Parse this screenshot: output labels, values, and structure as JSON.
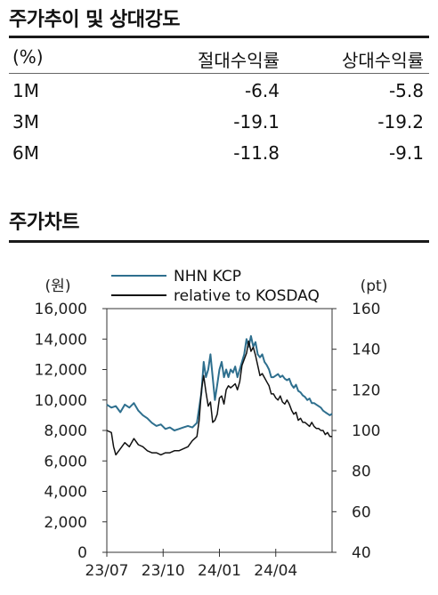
{
  "table_section": {
    "title": "주가추이 및 상대강도",
    "headers": [
      "(%)",
      "절대수익률",
      "상대수익률"
    ],
    "rows": [
      [
        "1M",
        "-6.4",
        "-5.8"
      ],
      [
        "3M",
        "-19.1",
        "-19.2"
      ],
      [
        "6M",
        "-11.8",
        "-9.1"
      ]
    ]
  },
  "chart_section": {
    "title": "주가차트"
  },
  "chart_data": {
    "type": "line",
    "left_axis": {
      "unit": "(원)",
      "range": [
        0,
        16000
      ],
      "ticks": [
        "0",
        "2,000",
        "4,000",
        "6,000",
        "8,000",
        "10,000",
        "12,000",
        "14,000",
        "16,000"
      ]
    },
    "right_axis": {
      "unit": "(pt)",
      "range": [
        40,
        160
      ],
      "ticks": [
        "40",
        "60",
        "80",
        "100",
        "120",
        "140",
        "160"
      ]
    },
    "x_ticks": [
      "23/07",
      "23/10",
      "24/01",
      "24/04"
    ],
    "x_range": [
      "2023-07",
      "2024-07"
    ],
    "colors": {
      "NHN KCP": "#2e6f8e",
      "relative to KOSDAQ": "#111111"
    },
    "series": [
      {
        "name": "NHN KCP",
        "axis": "left",
        "points": [
          [
            0.0,
            9700
          ],
          [
            0.02,
            9500
          ],
          [
            0.04,
            9600
          ],
          [
            0.06,
            9200
          ],
          [
            0.08,
            9700
          ],
          [
            0.1,
            9500
          ],
          [
            0.12,
            9800
          ],
          [
            0.14,
            9300
          ],
          [
            0.16,
            9000
          ],
          [
            0.18,
            8800
          ],
          [
            0.2,
            8500
          ],
          [
            0.22,
            8300
          ],
          [
            0.24,
            8400
          ],
          [
            0.26,
            8100
          ],
          [
            0.28,
            8200
          ],
          [
            0.3,
            8000
          ],
          [
            0.32,
            8100
          ],
          [
            0.34,
            8200
          ],
          [
            0.36,
            8300
          ],
          [
            0.38,
            8200
          ],
          [
            0.4,
            8500
          ],
          [
            0.42,
            10500
          ],
          [
            0.43,
            12500
          ],
          [
            0.44,
            11500
          ],
          [
            0.45,
            12000
          ],
          [
            0.46,
            13000
          ],
          [
            0.47,
            11500
          ],
          [
            0.48,
            10000
          ],
          [
            0.49,
            11000
          ],
          [
            0.5,
            12000
          ],
          [
            0.51,
            12500
          ],
          [
            0.52,
            11500
          ],
          [
            0.53,
            12000
          ],
          [
            0.54,
            11500
          ],
          [
            0.55,
            12000
          ],
          [
            0.56,
            11800
          ],
          [
            0.57,
            12200
          ],
          [
            0.58,
            11500
          ],
          [
            0.59,
            12000
          ],
          [
            0.6,
            12500
          ],
          [
            0.61,
            13000
          ],
          [
            0.62,
            14000
          ],
          [
            0.63,
            13500
          ],
          [
            0.64,
            14200
          ],
          [
            0.65,
            13500
          ],
          [
            0.66,
            13800
          ],
          [
            0.67,
            13000
          ],
          [
            0.68,
            12800
          ],
          [
            0.69,
            13000
          ],
          [
            0.7,
            12500
          ],
          [
            0.71,
            12300
          ],
          [
            0.72,
            12000
          ],
          [
            0.73,
            11500
          ],
          [
            0.74,
            11500
          ],
          [
            0.75,
            11600
          ],
          [
            0.76,
            11700
          ],
          [
            0.77,
            11500
          ],
          [
            0.78,
            11600
          ],
          [
            0.79,
            11400
          ],
          [
            0.8,
            11300
          ],
          [
            0.81,
            11400
          ],
          [
            0.82,
            11000
          ],
          [
            0.83,
            10800
          ],
          [
            0.84,
            11000
          ],
          [
            0.85,
            10600
          ],
          [
            0.86,
            10500
          ],
          [
            0.87,
            10300
          ],
          [
            0.88,
            10200
          ],
          [
            0.89,
            10000
          ],
          [
            0.9,
            10100
          ],
          [
            0.91,
            9800
          ],
          [
            0.92,
            9800
          ],
          [
            0.93,
            9700
          ],
          [
            0.94,
            9600
          ],
          [
            0.95,
            9500
          ],
          [
            0.96,
            9300
          ],
          [
            0.97,
            9200
          ],
          [
            0.98,
            9100
          ],
          [
            0.99,
            9000
          ],
          [
            1.0,
            9100
          ]
        ]
      },
      {
        "name": "relative to KOSDAQ",
        "axis": "right",
        "points": [
          [
            0.0,
            100
          ],
          [
            0.02,
            99
          ],
          [
            0.03,
            92
          ],
          [
            0.04,
            88
          ],
          [
            0.06,
            91
          ],
          [
            0.08,
            94
          ],
          [
            0.1,
            92
          ],
          [
            0.12,
            96
          ],
          [
            0.14,
            93
          ],
          [
            0.16,
            92
          ],
          [
            0.18,
            90
          ],
          [
            0.2,
            89
          ],
          [
            0.22,
            89
          ],
          [
            0.24,
            88
          ],
          [
            0.26,
            89
          ],
          [
            0.28,
            89
          ],
          [
            0.3,
            90
          ],
          [
            0.32,
            90
          ],
          [
            0.34,
            91
          ],
          [
            0.36,
            92
          ],
          [
            0.38,
            95
          ],
          [
            0.4,
            97
          ],
          [
            0.41,
            105
          ],
          [
            0.42,
            120
          ],
          [
            0.43,
            127
          ],
          [
            0.44,
            119
          ],
          [
            0.45,
            112
          ],
          [
            0.46,
            114
          ],
          [
            0.47,
            104
          ],
          [
            0.48,
            105
          ],
          [
            0.49,
            108
          ],
          [
            0.5,
            116
          ],
          [
            0.51,
            117
          ],
          [
            0.52,
            113
          ],
          [
            0.53,
            120
          ],
          [
            0.54,
            122
          ],
          [
            0.55,
            121
          ],
          [
            0.56,
            122
          ],
          [
            0.57,
            123
          ],
          [
            0.58,
            120
          ],
          [
            0.59,
            124
          ],
          [
            0.6,
            132
          ],
          [
            0.61,
            135
          ],
          [
            0.62,
            138
          ],
          [
            0.63,
            144
          ],
          [
            0.64,
            139
          ],
          [
            0.65,
            141
          ],
          [
            0.66,
            137
          ],
          [
            0.67,
            132
          ],
          [
            0.68,
            127
          ],
          [
            0.69,
            128
          ],
          [
            0.7,
            126
          ],
          [
            0.71,
            124
          ],
          [
            0.72,
            122
          ],
          [
            0.73,
            118
          ],
          [
            0.74,
            118
          ],
          [
            0.75,
            116
          ],
          [
            0.76,
            115
          ],
          [
            0.77,
            117
          ],
          [
            0.78,
            114
          ],
          [
            0.79,
            113
          ],
          [
            0.8,
            115
          ],
          [
            0.81,
            113
          ],
          [
            0.82,
            110
          ],
          [
            0.83,
            108
          ],
          [
            0.84,
            109
          ],
          [
            0.85,
            105
          ],
          [
            0.86,
            106
          ],
          [
            0.87,
            104
          ],
          [
            0.88,
            104
          ],
          [
            0.89,
            103
          ],
          [
            0.9,
            102
          ],
          [
            0.91,
            104
          ],
          [
            0.92,
            102
          ],
          [
            0.93,
            101
          ],
          [
            0.94,
            101
          ],
          [
            0.95,
            100
          ],
          [
            0.96,
            100
          ],
          [
            0.97,
            98
          ],
          [
            0.98,
            99
          ],
          [
            0.99,
            97
          ],
          [
            1.0,
            97
          ]
        ]
      }
    ]
  }
}
